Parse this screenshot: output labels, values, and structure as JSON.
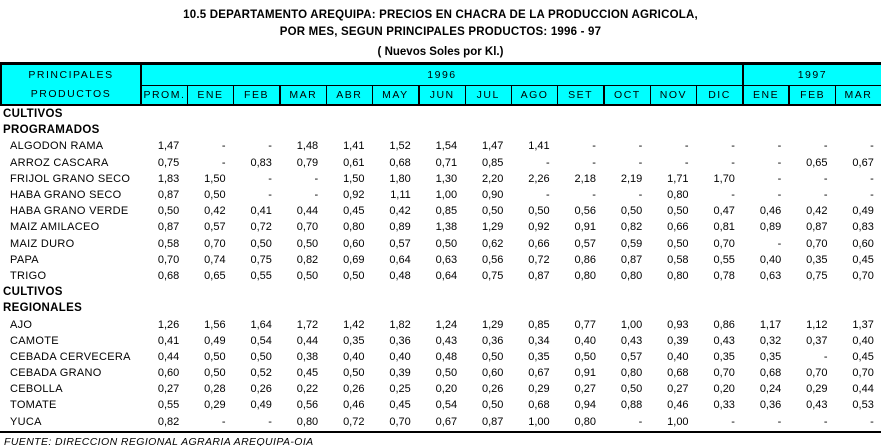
{
  "title": {
    "line1": "10.5  DEPARTAMENTO AREQUIPA: PRECIOS EN CHACRA DE LA PRODUCCION AGRICOLA,",
    "line2": "POR MES, SEGUN PRINCIPALES PRODUCTOS: 1996 - 97",
    "line3": "( Nuevos Soles por Kl.)"
  },
  "colors": {
    "header_bg": "#00FFFF",
    "border": "#000000",
    "text": "#000000"
  },
  "table": {
    "corner_header": {
      "line1": "PRINCIPALES",
      "line2": "PRODUCTOS"
    },
    "year_groups": [
      {
        "label": "1996",
        "span": 13
      },
      {
        "label": "1997",
        "span": 3
      }
    ],
    "columns": [
      "PROM.",
      "ENE",
      "FEB",
      "MAR",
      "ABR",
      "MAY",
      "JUN",
      "JUL",
      "AGO",
      "SET",
      "OCT",
      "NOV",
      "DIC",
      "ENE",
      "FEB",
      "MAR"
    ],
    "sections": [
      {
        "heading": [
          "CULTIVOS",
          "PROGRAMADOS"
        ],
        "rows": [
          {
            "product": "ALGODON RAMA",
            "values": [
              "1,47",
              "-",
              "-",
              "1,48",
              "1,41",
              "1,52",
              "1,54",
              "1,47",
              "1,41",
              "-",
              "-",
              "-",
              "-",
              "-",
              "-",
              "-"
            ]
          },
          {
            "product": "ARROZ CASCARA",
            "values": [
              "0,75",
              "-",
              "0,83",
              "0,79",
              "0,61",
              "0,68",
              "0,71",
              "0,85",
              "-",
              "-",
              "-",
              "-",
              "-",
              "-",
              "0,65",
              "0,67"
            ]
          },
          {
            "product": "FRIJOL GRANO SECO",
            "values": [
              "1,83",
              "1,50",
              "-",
              "-",
              "1,50",
              "1,80",
              "1,30",
              "2,20",
              "2,26",
              "2,18",
              "2,19",
              "1,71",
              "1,70",
              "-",
              "-",
              "-"
            ]
          },
          {
            "product": "HABA GRANO SECO",
            "values": [
              "0,87",
              "0,50",
              "-",
              "-",
              "0,92",
              "1,11",
              "1,00",
              "0,90",
              "-",
              "-",
              "-",
              "0,80",
              "-",
              "-",
              "-",
              "-"
            ]
          },
          {
            "product": "HABA GRANO VERDE",
            "values": [
              "0,50",
              "0,42",
              "0,41",
              "0,44",
              "0,45",
              "0,42",
              "0,85",
              "0,50",
              "0,50",
              "0,56",
              "0,50",
              "0,50",
              "0,47",
              "0,46",
              "0,42",
              "0,49"
            ]
          },
          {
            "product": "MAIZ AMILACEO",
            "values": [
              "0,87",
              "0,57",
              "0,72",
              "0,70",
              "0,80",
              "0,89",
              "1,38",
              "1,29",
              "0,92",
              "0,91",
              "0,82",
              "0,66",
              "0,81",
              "0,89",
              "0,87",
              "0,83"
            ]
          },
          {
            "product": "MAIZ DURO",
            "values": [
              "0,58",
              "0,70",
              "0,50",
              "0,50",
              "0,60",
              "0,57",
              "0,50",
              "0,62",
              "0,66",
              "0,57",
              "0,59",
              "0,50",
              "0,70",
              "-",
              "0,70",
              "0,60"
            ]
          },
          {
            "product": "PAPA",
            "values": [
              "0,70",
              "0,74",
              "0,75",
              "0,82",
              "0,69",
              "0,64",
              "0,63",
              "0,56",
              "0,72",
              "0,86",
              "0,87",
              "0,58",
              "0,55",
              "0,40",
              "0,35",
              "0,45"
            ]
          },
          {
            "product": "TRIGO",
            "values": [
              "0,68",
              "0,65",
              "0,55",
              "0,50",
              "0,50",
              "0,48",
              "0,64",
              "0,75",
              "0,87",
              "0,80",
              "0,80",
              "0,80",
              "0,78",
              "0,63",
              "0,75",
              "0,70"
            ]
          }
        ]
      },
      {
        "heading": [
          "CULTIVOS",
          "REGIONALES"
        ],
        "rows": [
          {
            "product": "AJO",
            "values": [
              "1,26",
              "1,56",
              "1,64",
              "1,72",
              "1,42",
              "1,82",
              "1,24",
              "1,29",
              "0,85",
              "0,77",
              "1,00",
              "0,93",
              "0,86",
              "1,17",
              "1,12",
              "1,37"
            ]
          },
          {
            "product": "CAMOTE",
            "values": [
              "0,41",
              "0,49",
              "0,54",
              "0,44",
              "0,35",
              "0,36",
              "0,43",
              "0,36",
              "0,34",
              "0,40",
              "0,43",
              "0,39",
              "0,43",
              "0,32",
              "0,37",
              "0,40"
            ]
          },
          {
            "product": "CEBADA CERVECERA",
            "values": [
              "0,44",
              "0,50",
              "0,50",
              "0,38",
              "0,40",
              "0,40",
              "0,48",
              "0,50",
              "0,35",
              "0,50",
              "0,57",
              "0,40",
              "0,35",
              "0,35",
              "-",
              "0,45"
            ]
          },
          {
            "product": "CEBADA GRANO",
            "values": [
              "0,60",
              "0,50",
              "0,52",
              "0,45",
              "0,50",
              "0,39",
              "0,50",
              "0,60",
              "0,67",
              "0,91",
              "0,80",
              "0,68",
              "0,70",
              "0,68",
              "0,70",
              "0,70"
            ]
          },
          {
            "product": "CEBOLLA",
            "values": [
              "0,27",
              "0,28",
              "0,26",
              "0,22",
              "0,26",
              "0,25",
              "0,20",
              "0,26",
              "0,29",
              "0,27",
              "0,50",
              "0,27",
              "0,20",
              "0,24",
              "0,29",
              "0,44"
            ]
          },
          {
            "product": "TOMATE",
            "values": [
              "0,55",
              "0,29",
              "0,49",
              "0,56",
              "0,46",
              "0,45",
              "0,54",
              "0,50",
              "0,68",
              "0,94",
              "0,88",
              "0,46",
              "0,33",
              "0,36",
              "0,43",
              "0,53"
            ]
          },
          {
            "product": "YUCA",
            "values": [
              "0,82",
              "-",
              "-",
              "0,80",
              "0,72",
              "0,70",
              "0,67",
              "0,87",
              "1,00",
              "0,80",
              "-",
              "1,00",
              "-",
              "-",
              "-",
              "-"
            ]
          }
        ]
      }
    ]
  },
  "footer": {
    "source": "FUENTE: DIRECCION REGIONAL AGRARIA AREQUIPA-OIA"
  }
}
